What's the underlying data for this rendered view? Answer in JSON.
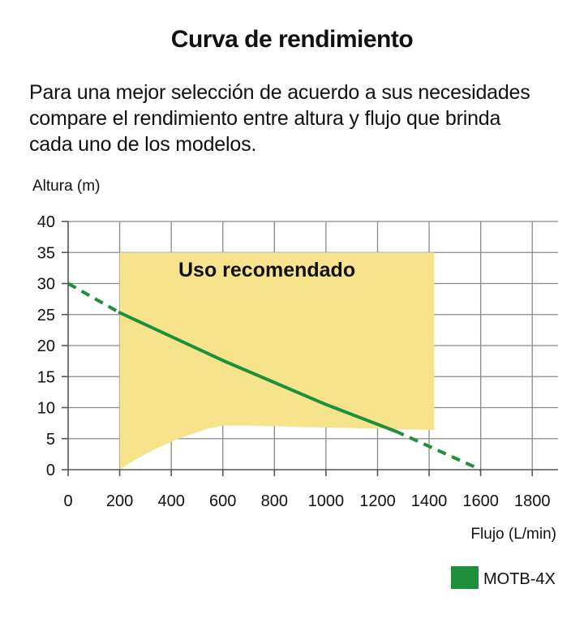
{
  "header": {
    "title": "Curva de rendimiento",
    "subtitle_lines": [
      "Para una mejor selección de acuerdo a sus necesidades",
      "compare el rendimiento entre altura y flujo que brinda",
      "cada uno de los modelos."
    ]
  },
  "chart_data": {
    "type": "line",
    "ylabel": "Altura (m)",
    "xlabel": "Flujo (L/min)",
    "xlim": [
      0,
      1900
    ],
    "ylim": [
      0,
      40
    ],
    "x_ticks": [
      0,
      200,
      400,
      600,
      800,
      1000,
      1200,
      1400,
      1600,
      1800
    ],
    "y_ticks": [
      0,
      5,
      10,
      15,
      20,
      25,
      30,
      35,
      40
    ],
    "grid": true,
    "recommended_area": {
      "label": "Uso recomendado",
      "color": "#f6e38b",
      "x_range": [
        200,
        1420
      ],
      "top": 35,
      "lower_boundary": [
        {
          "x": 200,
          "y": 0
        },
        {
          "x": 260,
          "y": 1.6
        },
        {
          "x": 340,
          "y": 3.4
        },
        {
          "x": 440,
          "y": 5.2
        },
        {
          "x": 540,
          "y": 6.6
        },
        {
          "x": 600,
          "y": 7.1
        },
        {
          "x": 700,
          "y": 7.1
        },
        {
          "x": 900,
          "y": 6.9
        },
        {
          "x": 1100,
          "y": 6.7
        },
        {
          "x": 1300,
          "y": 6.5
        },
        {
          "x": 1420,
          "y": 6.4
        }
      ]
    },
    "series": [
      {
        "name": "MOTB-4X",
        "color": "#1e8f3a",
        "solid_points": [
          {
            "x": 200,
            "y": 25.3
          },
          {
            "x": 600,
            "y": 17.6
          },
          {
            "x": 1000,
            "y": 10.5
          },
          {
            "x": 1270,
            "y": 6.2
          }
        ],
        "dashed_points_start": [
          {
            "x": 0,
            "y": 30
          },
          {
            "x": 200,
            "y": 25.3
          }
        ],
        "dashed_points_end": [
          {
            "x": 1270,
            "y": 6.2
          },
          {
            "x": 1600,
            "y": 0
          }
        ]
      }
    ],
    "legend": {
      "placement": "bottom-right",
      "label": "MOTB-4X",
      "color": "#1e8f3a"
    }
  }
}
